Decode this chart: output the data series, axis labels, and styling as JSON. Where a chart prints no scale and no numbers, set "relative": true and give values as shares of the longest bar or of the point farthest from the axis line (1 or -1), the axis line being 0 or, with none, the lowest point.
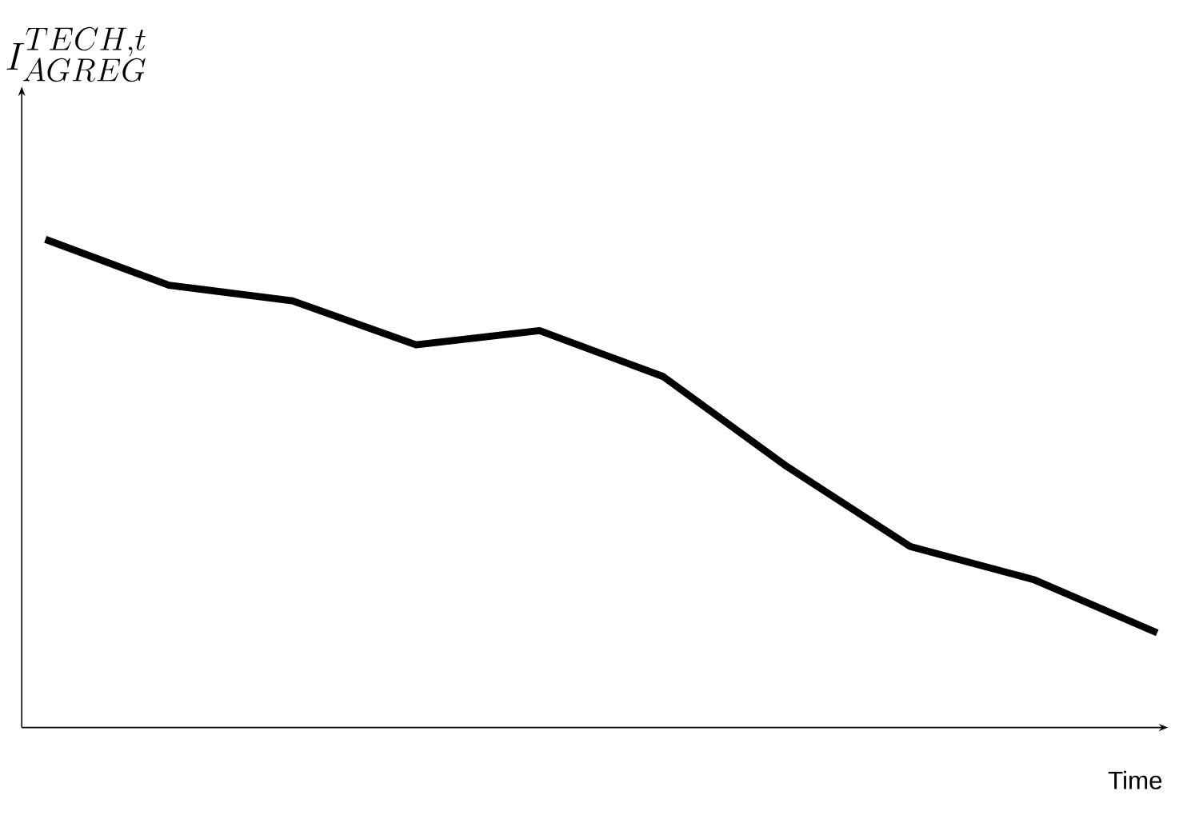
{
  "chart_data": {
    "type": "line",
    "relative": true,
    "xlabel": "Time",
    "annotations": [
      "I^{TECH ,t}_{AGREG}"
    ],
    "categories": [
      null,
      null,
      null,
      null,
      null,
      null,
      null,
      null,
      null,
      null
    ],
    "series": [
      {
        "color": "#000000",
        "values": [
          1.0,
          0.906,
          0.874,
          0.784,
          0.813,
          0.719,
          0.535,
          0.371,
          0.303,
          0.194
        ]
      }
    ]
  }
}
